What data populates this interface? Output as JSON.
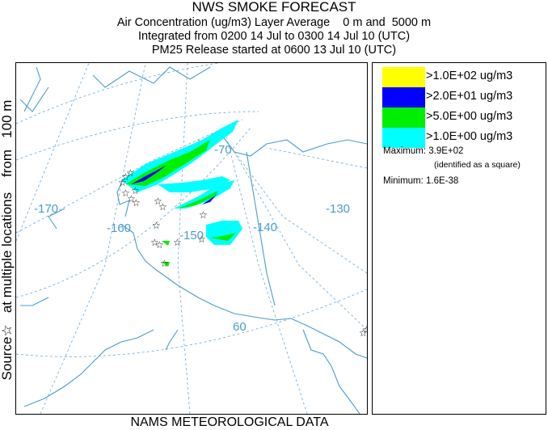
{
  "header": {
    "title": "NWS SMOKE FORECAST",
    "line2": "Air Concentration (ug/m3) Layer Average    0 m and  5000 m",
    "line3": "Integrated from 0200 14 Jul to 0300 14 Jul 10 (UTC)",
    "line4": "PM25 Release started at 0600 13 Jul 10 (UTC)"
  },
  "side_label": "Source☆   at multiple locations    from   100 m",
  "footer": "NAMS METEOROLOGICAL DATA",
  "map": {
    "lon_labels": [
      "-170",
      "-160",
      "-150",
      "-140",
      "-130",
      "-70",
      "60"
    ],
    "source_marker": "☆",
    "colors": {
      "graticule": "#6aa9d6",
      "coast": "#4a9ccf"
    }
  },
  "legend": {
    "items": [
      {
        "label": ">1.0E+02 ug/m3",
        "color": "#ffff00"
      },
      {
        "label": ">2.0E+01 ug/m3",
        "color": "#0000ff"
      },
      {
        "label": ">5.0E+00 ug/m3",
        "color": "#00ee00"
      },
      {
        "label": ">1.0E+00 ug/m3",
        "color": "#00ffff"
      }
    ],
    "maximum": "Maximum: 3.9E+02",
    "max_note": "(identified as a square)",
    "minimum": "Minimum: 1.6E-38"
  }
}
